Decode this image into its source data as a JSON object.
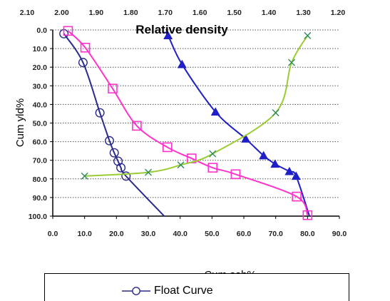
{
  "chart_data": {
    "type": "line",
    "title": "Relative density",
    "xlabel": "Cum ash%",
    "ylabel": "Cum yld%",
    "xlim": [
      0,
      90
    ],
    "ylim": [
      0,
      100
    ],
    "y_inverted": true,
    "secondary_x": {
      "label": "Relative density",
      "lim": [
        2.1,
        1.2
      ],
      "tick_labels": [
        "2.10",
        "2.00",
        "1.90",
        "1.80",
        "1.70",
        "1.60",
        "1.50",
        "1.40",
        "1.30",
        "1.20"
      ]
    },
    "x_tick_labels": [
      "0.0",
      "10.0",
      "20.0",
      "30.0",
      "40.0",
      "50.0",
      "60.0",
      "70.0",
      "80.0",
      "90.0"
    ],
    "y_tick_labels": [
      "0.0",
      "10.0",
      "20.0",
      "30.0",
      "40.0",
      "50.0",
      "60.0",
      "70.0",
      "80.0",
      "90.0",
      "100.0"
    ],
    "grid": "horizontal-dotted",
    "legend_position": "bottom",
    "series": [
      {
        "name": "Float Curve",
        "color": "#2b2b8c",
        "marker": "circle",
        "axis": "primary",
        "points": [
          [
            3.5,
            2
          ],
          [
            9.5,
            17.5
          ],
          [
            14.8,
            44.5
          ],
          [
            17.8,
            59.5
          ],
          [
            19.3,
            66
          ],
          [
            20.5,
            70.5
          ],
          [
            21.4,
            74
          ],
          [
            23,
            78.5
          ],
          [
            35,
            100
          ]
        ]
      },
      {
        "color": "#1f1fc8",
        "marker": "triangle",
        "axis": "primary",
        "points": [
          [
            35,
            1.5
          ],
          [
            36.2,
            3
          ],
          [
            40.6,
            18.5
          ],
          [
            51.1,
            44
          ],
          [
            60.6,
            58.5
          ],
          [
            66.2,
            67.5
          ],
          [
            69.8,
            72
          ],
          [
            74.3,
            76
          ],
          [
            76.4,
            78.5
          ],
          [
            80.6,
            100
          ]
        ]
      },
      {
        "color": "#ff33cc",
        "marker": "square",
        "axis": "primary",
        "points": [
          [
            4.8,
            0.5
          ],
          [
            10.2,
            9.5
          ],
          [
            18.8,
            31.5
          ],
          [
            26.4,
            51.5
          ],
          [
            36,
            63
          ],
          [
            43.6,
            69
          ],
          [
            50.2,
            74
          ],
          [
            57.4,
            77.5
          ],
          [
            76.6,
            89.5
          ],
          [
            80,
            99.5
          ]
        ]
      },
      {
        "color": "#99cc33",
        "marker": "x",
        "axis": "primary",
        "points": [
          [
            10,
            78.5
          ],
          [
            30,
            76.5
          ],
          [
            40.2,
            72.5
          ],
          [
            50.2,
            66.5
          ],
          [
            70,
            44.5
          ],
          [
            75,
            17.5
          ],
          [
            80,
            3
          ]
        ]
      }
    ]
  }
}
